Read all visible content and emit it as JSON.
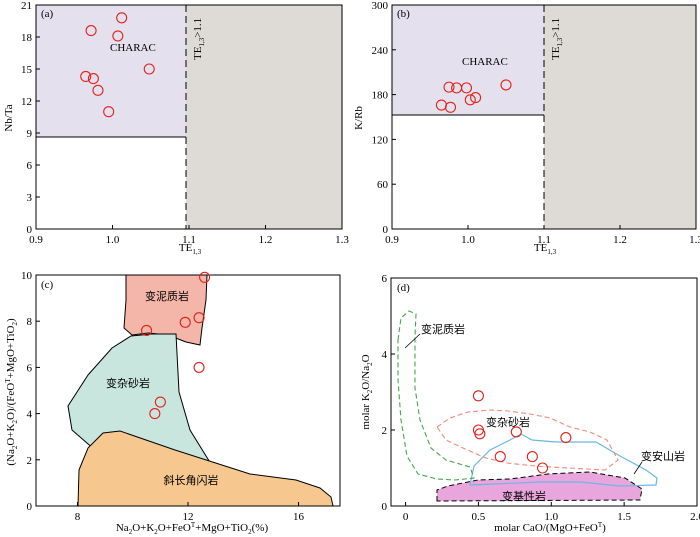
{
  "chart_data": [
    {
      "type": "scatter",
      "panel": "(a)",
      "xlabel": "TE1,3",
      "ylabel": "Nb/Ta",
      "xlim": [
        0.9,
        1.3
      ],
      "ylim": [
        0,
        21
      ],
      "xticks": [
        "0.9",
        "1.0",
        "1.1",
        "1.2",
        "1.3"
      ],
      "yticks": [
        "0",
        "3",
        "6",
        "9",
        "12",
        "15",
        "18",
        "21"
      ],
      "region_labels": [
        "CHARAC"
      ],
      "annotation": "TE1,3>1.1",
      "points": [
        {
          "x": 0.972,
          "y": 18.6
        },
        {
          "x": 1.012,
          "y": 19.8
        },
        {
          "x": 1.007,
          "y": 18.1
        },
        {
          "x": 1.048,
          "y": 15.0
        },
        {
          "x": 0.965,
          "y": 14.3
        },
        {
          "x": 0.975,
          "y": 14.1
        },
        {
          "x": 0.981,
          "y": 13.0
        },
        {
          "x": 0.995,
          "y": 11.0
        }
      ]
    },
    {
      "type": "scatter",
      "panel": "(b)",
      "xlabel": "TE1,3",
      "ylabel": "K/Rb",
      "xlim": [
        0.9,
        1.3
      ],
      "ylim": [
        0,
        300
      ],
      "xticks": [
        "0.9",
        "1.0",
        "1.1",
        "1.2",
        "1.3"
      ],
      "yticks": [
        "0",
        "60",
        "120",
        "180",
        "240",
        "300"
      ],
      "region_labels": [
        "CHARAC"
      ],
      "annotation": "TE1,3>1.1",
      "points": [
        {
          "x": 0.975,
          "y": 190
        },
        {
          "x": 0.985,
          "y": 189
        },
        {
          "x": 0.998,
          "y": 189
        },
        {
          "x": 1.05,
          "y": 193
        },
        {
          "x": 1.003,
          "y": 173
        },
        {
          "x": 1.01,
          "y": 176
        },
        {
          "x": 0.965,
          "y": 166
        },
        {
          "x": 0.977,
          "y": 163
        }
      ]
    },
    {
      "type": "scatter",
      "panel": "(c)",
      "xlabel": "Na2O+K2O+FeOT+MgO+TiO2(%)",
      "ylabel": "(Na2O+K2O)/(FeOT+MgO+TiO2)",
      "xlim": [
        6.5,
        17.5
      ],
      "ylim": [
        0,
        10
      ],
      "xticks": [
        "8",
        "12",
        "16"
      ],
      "yticks": [
        "0",
        "2",
        "4",
        "6",
        "8",
        "10"
      ],
      "field_labels": [
        "变泥质岩",
        "变杂砂岩",
        "斜长角闪岩"
      ],
      "points": [
        {
          "x": 12.6,
          "y": 9.9
        },
        {
          "x": 12.4,
          "y": 8.15
        },
        {
          "x": 11.9,
          "y": 7.95
        },
        {
          "x": 10.5,
          "y": 7.6
        },
        {
          "x": 12.4,
          "y": 6.0
        },
        {
          "x": 11.0,
          "y": 4.5
        },
        {
          "x": 10.8,
          "y": 4.0
        }
      ]
    },
    {
      "type": "scatter",
      "panel": "(d)",
      "xlabel": "molar CaO/(MgO+FeOT)",
      "ylabel": "molar K2O/Na2O",
      "xlim": [
        -0.1,
        2.0
      ],
      "ylim": [
        0,
        6
      ],
      "xticks": [
        "0",
        "0.5",
        "1.0",
        "1.5",
        "2.0"
      ],
      "yticks": [
        "0",
        "2",
        "4",
        "6"
      ],
      "field_labels": [
        "变泥质岩",
        "变杂砂岩",
        "变安山岩",
        "变基性岩"
      ],
      "points": [
        {
          "x": 0.5,
          "y": 2.9
        },
        {
          "x": 0.5,
          "y": 2.0
        },
        {
          "x": 0.51,
          "y": 1.9
        },
        {
          "x": 0.76,
          "y": 1.95
        },
        {
          "x": 1.1,
          "y": 1.8
        },
        {
          "x": 0.65,
          "y": 1.3
        },
        {
          "x": 0.87,
          "y": 1.3
        },
        {
          "x": 0.94,
          "y": 1.0
        }
      ]
    }
  ]
}
